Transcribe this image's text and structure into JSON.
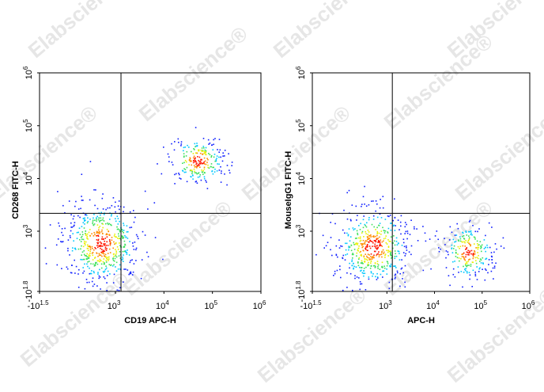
{
  "watermark": "Elabscience®",
  "chart_data": [
    {
      "type": "scatter",
      "scale": "biexponential",
      "x_label": "CD19 APC-H",
      "y_label": "CD268 FITC-H",
      "xlim": [
        -31.6,
        1000000
      ],
      "ylim": [
        -63.1,
        1000000
      ],
      "xticks": [
        {
          "value": -31.6,
          "label": "-10",
          "exponent": "1.5"
        },
        {
          "value": 1000,
          "label": "10",
          "exponent": "3"
        },
        {
          "value": 10000,
          "label": "10",
          "exponent": "4"
        },
        {
          "value": 100000,
          "label": "10",
          "exponent": "5"
        },
        {
          "value": 1000000,
          "label": "10",
          "exponent": "6"
        }
      ],
      "yticks": [
        {
          "value": -63.1,
          "label": "-10",
          "exponent": "1.8"
        },
        {
          "value": 1000,
          "label": "10",
          "exponent": "3"
        },
        {
          "value": 10000,
          "label": "10",
          "exponent": "4"
        },
        {
          "value": 100000,
          "label": "10",
          "exponent": "5"
        },
        {
          "value": 1000000,
          "label": "10",
          "exponent": "6"
        }
      ],
      "gate": {
        "x": 1300,
        "y": 2200
      },
      "populations": [
        {
          "x": 500,
          "y": 600,
          "x_range": [
            -31.6,
            1300
          ],
          "y_range": [
            -63.1,
            3000
          ]
        },
        {
          "x": 50000,
          "y": 22000,
          "x_range": [
            12000,
            200000
          ],
          "y_range": [
            7000,
            60000
          ]
        }
      ]
    },
    {
      "type": "scatter",
      "scale": "biexponential",
      "x_label": "APC-H",
      "y_label": "MouseIgG1 FITC-H",
      "xlim": [
        -31.6,
        1000000
      ],
      "ylim": [
        -63.1,
        1000000
      ],
      "xticks": [
        {
          "value": -31.6,
          "label": "-10",
          "exponent": "1.5"
        },
        {
          "value": 1000,
          "label": "10",
          "exponent": "3"
        },
        {
          "value": 10000,
          "label": "10",
          "exponent": "4"
        },
        {
          "value": 100000,
          "label": "10",
          "exponent": "5"
        },
        {
          "value": 1000000,
          "label": "10",
          "exponent": "6"
        }
      ],
      "yticks": [
        {
          "value": -63.1,
          "label": "-10",
          "exponent": "1.8"
        },
        {
          "value": 1000,
          "label": "10",
          "exponent": "3"
        },
        {
          "value": 10000,
          "label": "10",
          "exponent": "4"
        },
        {
          "value": 100000,
          "label": "10",
          "exponent": "5"
        },
        {
          "value": 1000000,
          "label": "10",
          "exponent": "6"
        }
      ],
      "gate": {
        "x": 1300,
        "y": 2200
      },
      "populations": [
        {
          "x": 500,
          "y": 500,
          "x_range": [
            -31.6,
            1300
          ],
          "y_range": [
            -63.1,
            2500
          ]
        },
        {
          "x": 50000,
          "y": 400,
          "x_range": [
            20000,
            250000
          ],
          "y_range": [
            -30,
            1000
          ]
        }
      ]
    }
  ]
}
